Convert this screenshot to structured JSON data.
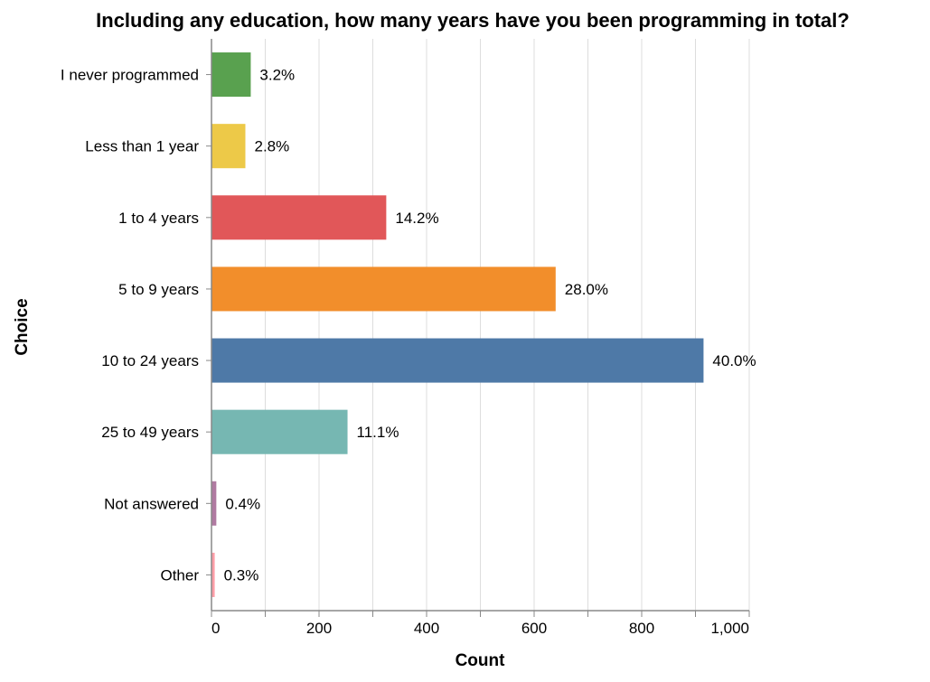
{
  "chart_data": {
    "type": "bar",
    "orientation": "horizontal",
    "title": "Including any education, how many years have you been programming in total?",
    "xlabel": "Count",
    "ylabel": "Choice",
    "xlim": [
      0,
      1000
    ],
    "x_ticks": [
      0,
      200,
      400,
      600,
      800,
      1000
    ],
    "x_tick_labels": [
      "0",
      "200",
      "400",
      "600",
      "800",
      "1,000"
    ],
    "grid": true,
    "categories": [
      "I never programmed",
      "Less than 1 year",
      "1 to 4 years",
      "5 to 9 years",
      "10 to 24 years",
      "25 to 49 years",
      "Not answered",
      "Other"
    ],
    "values": [
      73,
      63,
      325,
      640,
      915,
      253,
      9,
      6
    ],
    "labels": [
      "3.2%",
      "2.8%",
      "14.2%",
      "28.0%",
      "40.0%",
      "11.1%",
      "0.4%",
      "0.3%"
    ],
    "colors": [
      "#59a14f",
      "#edc948",
      "#e15759",
      "#f28e2b",
      "#4e79a7",
      "#76b7b2",
      "#b07aa1",
      "#ff9da7"
    ]
  }
}
